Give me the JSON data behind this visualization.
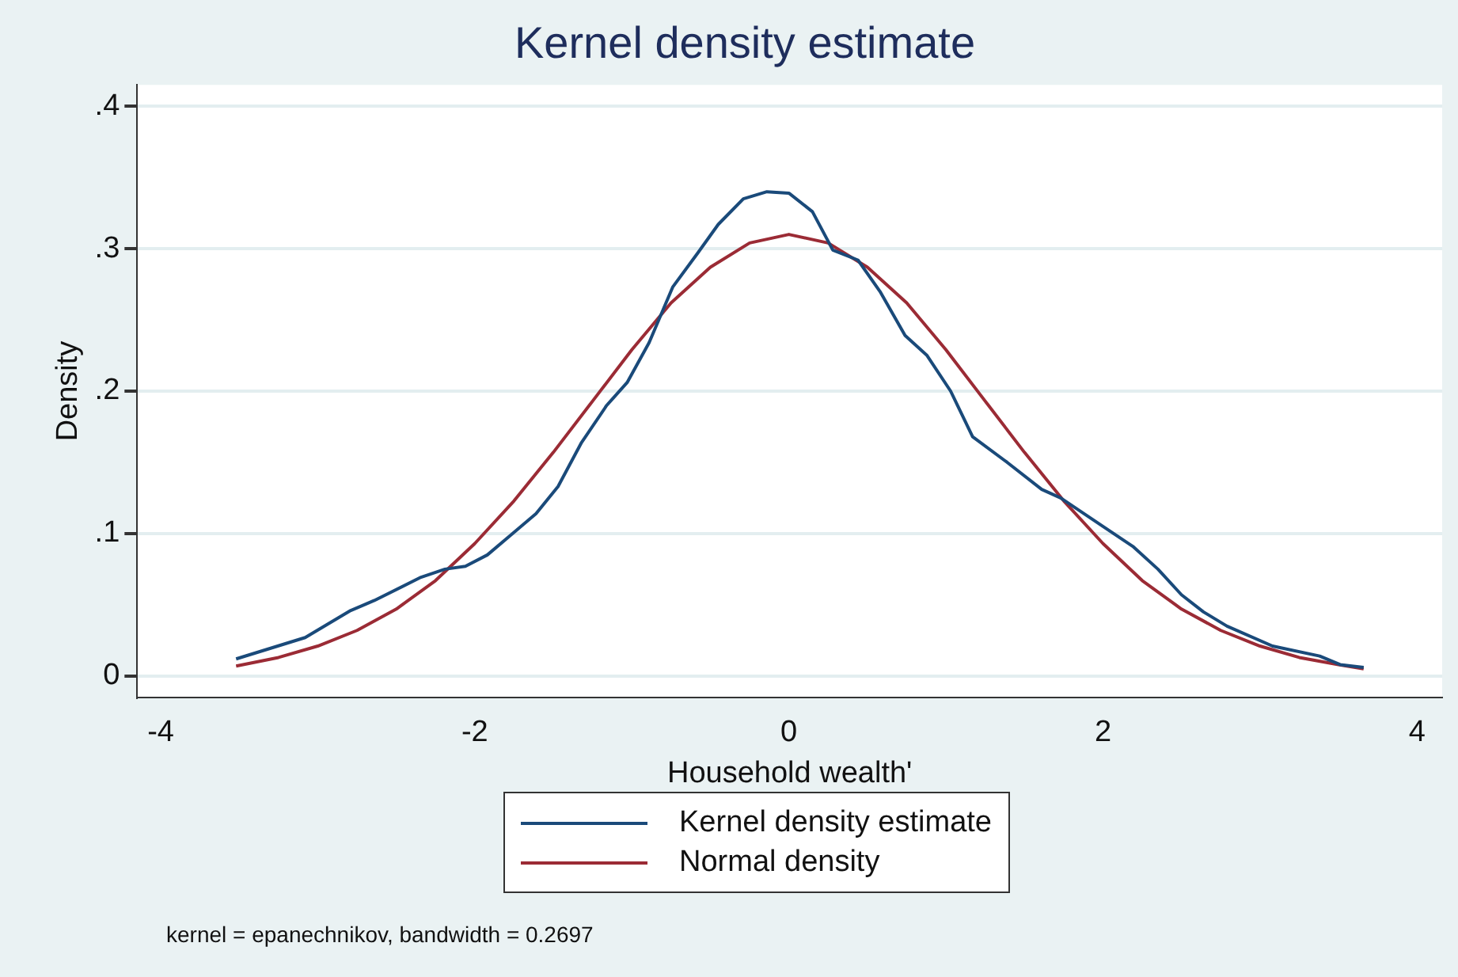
{
  "chart_data": {
    "type": "line",
    "title": "Kernel density estimate",
    "xlabel": "Household wealth'",
    "ylabel": "Density",
    "series": [
      {
        "name": "Kernel density estimate",
        "color": "#1a4a7a",
        "x": [
          -3.52,
          -3.08,
          -2.79,
          -2.64,
          -2.35,
          -2.19,
          -2.06,
          -1.92,
          -1.76,
          -1.61,
          -1.47,
          -1.32,
          -1.16,
          -1.03,
          -0.89,
          -0.74,
          -0.58,
          -0.45,
          -0.29,
          -0.14,
          0,
          0.15,
          0.28,
          0.44,
          0.58,
          0.74,
          0.88,
          1.03,
          1.17,
          1.39,
          1.61,
          1.73,
          2.0,
          2.19,
          2.35,
          2.5,
          2.64,
          2.79,
          3.08,
          3.38,
          3.51,
          3.66
        ],
        "values": [
          0.012,
          0.027,
          0.046,
          0.053,
          0.069,
          0.075,
          0.077,
          0.085,
          0.1,
          0.114,
          0.133,
          0.164,
          0.19,
          0.206,
          0.234,
          0.273,
          0.297,
          0.317,
          0.335,
          0.34,
          0.339,
          0.326,
          0.299,
          0.292,
          0.27,
          0.239,
          0.225,
          0.2,
          0.168,
          0.15,
          0.131,
          0.125,
          0.105,
          0.091,
          0.075,
          0.057,
          0.045,
          0.035,
          0.021,
          0.014,
          0.008,
          0.006
        ]
      },
      {
        "name": "Normal density",
        "color": "#9b2b35",
        "x": [
          -3.52,
          -3.25,
          -3.0,
          -2.75,
          -2.5,
          -2.25,
          -2.0,
          -1.75,
          -1.5,
          -1.25,
          -1.0,
          -0.75,
          -0.5,
          -0.25,
          0,
          0.25,
          0.5,
          0.75,
          1.0,
          1.25,
          1.5,
          1.75,
          2.0,
          2.25,
          2.5,
          2.75,
          3.0,
          3.25,
          3.5,
          3.66
        ],
        "values": [
          0.007,
          0.013,
          0.021,
          0.032,
          0.047,
          0.067,
          0.093,
          0.123,
          0.157,
          0.193,
          0.229,
          0.262,
          0.287,
          0.304,
          0.31,
          0.304,
          0.287,
          0.262,
          0.229,
          0.193,
          0.157,
          0.123,
          0.093,
          0.067,
          0.047,
          0.032,
          0.021,
          0.013,
          0.008,
          0.005
        ]
      }
    ],
    "xlim": [
      -4.15,
      4.16
    ],
    "xticks": [
      -4,
      -2,
      0,
      2,
      4
    ],
    "ylim": [
      -0.015,
      0.415
    ],
    "yticks": [
      {
        "value": 0,
        "label": "0"
      },
      {
        "value": 0.1,
        "label": ".1"
      },
      {
        "value": 0.2,
        "label": ".2"
      },
      {
        "value": 0.3,
        "label": ".3"
      },
      {
        "value": 0.4,
        "label": ".4"
      }
    ],
    "grid": "y",
    "legend": "bottom",
    "marker": "none",
    "line_style": "solid",
    "annotations": [
      "kernel = epanechnikov, bandwidth = 0.2697"
    ]
  }
}
